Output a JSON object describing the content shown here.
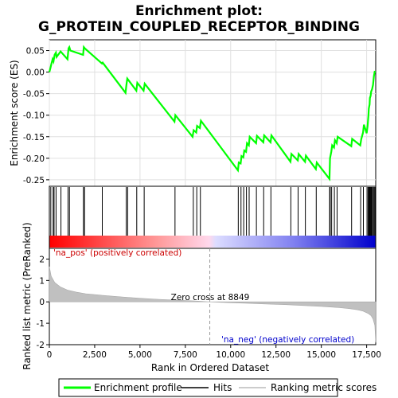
{
  "chart_data": [
    {
      "type": "line",
      "title": "Enrichment plot:",
      "subtitle": "G_PROTEIN_COUPLED_RECEPTOR_BINDING",
      "ylabel": "Enrichment score (ES)",
      "xlim": [
        0,
        18000
      ],
      "ylim": [
        -0.265,
        0.075
      ],
      "yticks": [
        "-0.25",
        "-0.20",
        "-0.15",
        "-0.10",
        "-0.05",
        "0.00",
        "0.05"
      ],
      "grid": true,
      "series": [
        {
          "name": "Enrichment profile",
          "color": "#00ff00",
          "x": [
            0,
            60,
            120,
            180,
            230,
            290,
            360,
            400,
            620,
            680,
            1000,
            1060,
            1100,
            1160,
            1860,
            1900,
            1960,
            2900,
            2940,
            4200,
            4250,
            4300,
            4350,
            4800,
            4850,
            5200,
            5260,
            6900,
            6950,
            7900,
            7960,
            8100,
            8150,
            8300,
            8360,
            10400,
            10450,
            10550,
            10600,
            10700,
            10750,
            10850,
            10900,
            11000,
            11050,
            11400,
            11450,
            11800,
            11850,
            12200,
            12250,
            13300,
            13350,
            13700,
            13750,
            14100,
            14150,
            14700,
            14750,
            15450,
            15480,
            15550,
            15600,
            15700,
            15750,
            15850,
            15900,
            16650,
            16700,
            17150,
            17200,
            17300,
            17350,
            17500,
            17550,
            17600,
            17620,
            17660,
            17680,
            17720,
            17750,
            17800,
            17850,
            17900,
            17950
          ],
          "y": [
            0.0,
            0.01,
            0.02,
            0.03,
            0.025,
            0.04,
            0.045,
            0.035,
            0.048,
            0.045,
            0.03,
            0.055,
            0.058,
            0.05,
            0.04,
            0.058,
            0.055,
            0.02,
            0.022,
            -0.048,
            -0.03,
            -0.015,
            -0.018,
            -0.043,
            -0.025,
            -0.043,
            -0.027,
            -0.115,
            -0.1,
            -0.15,
            -0.135,
            -0.14,
            -0.125,
            -0.13,
            -0.113,
            -0.228,
            -0.21,
            -0.212,
            -0.195,
            -0.198,
            -0.182,
            -0.185,
            -0.165,
            -0.17,
            -0.15,
            -0.165,
            -0.148,
            -0.163,
            -0.147,
            -0.163,
            -0.147,
            -0.208,
            -0.19,
            -0.205,
            -0.19,
            -0.208,
            -0.194,
            -0.225,
            -0.21,
            -0.248,
            -0.2,
            -0.185,
            -0.17,
            -0.175,
            -0.158,
            -0.165,
            -0.15,
            -0.172,
            -0.155,
            -0.17,
            -0.156,
            -0.14,
            -0.122,
            -0.142,
            -0.125,
            -0.1,
            -0.085,
            -0.075,
            -0.06,
            -0.055,
            -0.045,
            -0.04,
            -0.03,
            -0.01,
            0.003
          ]
        }
      ]
    },
    {
      "type": "heatmap",
      "hits": [
        80,
        210,
        260,
        370,
        640,
        1030,
        1110,
        1880,
        1940,
        2920,
        4240,
        4320,
        4820,
        5230,
        6930,
        7940,
        8130,
        8330,
        10420,
        10570,
        10720,
        10870,
        11020,
        11420,
        11820,
        12220,
        13320,
        13720,
        14120,
        14720,
        15460,
        15490,
        15570,
        15720,
        15870,
        16670,
        17170,
        17320,
        17520,
        17580,
        17630,
        17660,
        17690,
        17730,
        17760,
        17810,
        17860,
        17910,
        17960
      ]
    },
    {
      "type": "area",
      "ylabel": "Ranked list metric (PreRanked)",
      "xlabel": "Rank in Ordered Dataset",
      "xlim": [
        0,
        18000
      ],
      "ylim": [
        -2,
        2.5
      ],
      "yticks": [
        "2",
        "1",
        "0",
        "-1",
        "-2"
      ],
      "xticks": [
        "0",
        "2,500",
        "5,000",
        "7,500",
        "10,000",
        "12,500",
        "15,000",
        "17,500"
      ],
      "zero_cross_label": "Zero cross at 8849",
      "zero_cross": 8849,
      "pos_label": "'na_pos' (positively correlated)",
      "neg_label": "'na_neg' (negatively correlated)",
      "curve": {
        "x": [
          0,
          20,
          100,
          300,
          600,
          1000,
          1500,
          2000,
          3000,
          4000,
          5000,
          6000,
          7000,
          8000,
          8849,
          10000,
          11000,
          12000,
          13000,
          14000,
          15000,
          15500,
          16000,
          16500,
          17000,
          17300,
          17600,
          17750,
          17850,
          17950,
          18000
        ],
        "y": [
          1.65,
          1.55,
          1.2,
          0.9,
          0.7,
          0.55,
          0.45,
          0.38,
          0.3,
          0.23,
          0.17,
          0.12,
          0.08,
          0.04,
          0.0,
          -0.04,
          -0.07,
          -0.1,
          -0.13,
          -0.17,
          -0.21,
          -0.24,
          -0.27,
          -0.31,
          -0.37,
          -0.43,
          -0.55,
          -0.65,
          -0.8,
          -1.1,
          -1.9
        ]
      }
    }
  ],
  "legend": {
    "items": [
      {
        "label": "Enrichment profile",
        "color": "#00ff00"
      },
      {
        "label": "Hits",
        "color": "#000000"
      },
      {
        "label": "Ranking metric scores",
        "color": "#bbbbbb"
      }
    ]
  }
}
